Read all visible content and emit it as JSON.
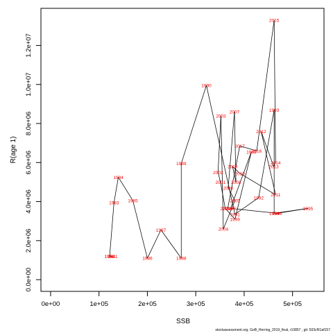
{
  "chart_data": {
    "type": "line",
    "xlabel": "SSB",
    "ylabel": "R(age 1)",
    "xlim": [
      -20000,
      565000
    ],
    "ylim": [
      -600000,
      13900000
    ],
    "x_ticks": [
      0,
      100000,
      200000,
      300000,
      400000,
      500000
    ],
    "x_tick_labels": [
      "0e+00",
      "1e+05",
      "2e+05",
      "3e+05",
      "4e+05",
      "5e+05"
    ],
    "y_ticks": [
      0,
      2000000,
      4000000,
      6000000,
      8000000,
      10000000,
      12000000
    ],
    "y_tick_labels": [
      "0.0e+00",
      "2.0e+06",
      "4.0e+06",
      "6.0e+06",
      "8.0e+06",
      "1.0e+07",
      "1.2e+07"
    ],
    "grid": false,
    "line_color": "#000000",
    "label_color": "#ff0000",
    "points": [
      {
        "year": "1980",
        "x": 122000,
        "y": 1200000
      },
      {
        "year": "1981",
        "x": 128000,
        "y": 1200000
      },
      {
        "year": "1982",
        "x": 122000,
        "y": 1200000
      },
      {
        "year": "1983",
        "x": 131000,
        "y": 3950000
      },
      {
        "year": "1984",
        "x": 140000,
        "y": 5250000
      },
      {
        "year": "1985",
        "x": 170000,
        "y": 4050000
      },
      {
        "year": "1986",
        "x": 200000,
        "y": 1100000
      },
      {
        "year": "1987",
        "x": 228000,
        "y": 2550000
      },
      {
        "year": "1988",
        "x": 270000,
        "y": 1100000
      },
      {
        "year": "1989",
        "x": 270000,
        "y": 5950000
      },
      {
        "year": "1990",
        "x": 322000,
        "y": 9950000
      },
      {
        "year": "1991",
        "x": 381000,
        "y": 3350000
      },
      {
        "year": "1992",
        "x": 430000,
        "y": 4200000
      },
      {
        "year": "1993",
        "x": 462000,
        "y": 8700000
      },
      {
        "year": "1994",
        "x": 462000,
        "y": 3400000
      },
      {
        "year": "1995",
        "x": 532000,
        "y": 3650000
      },
      {
        "year": "1996",
        "x": 468000,
        "y": 3400000
      },
      {
        "year": "1997",
        "x": 372000,
        "y": 3650000
      },
      {
        "year": "1998",
        "x": 415000,
        "y": 6550000
      },
      {
        "year": "1999",
        "x": 381000,
        "y": 3100000
      },
      {
        "year": "2000",
        "x": 361000,
        "y": 3650000
      },
      {
        "year": "2001",
        "x": 351000,
        "y": 5000000
      },
      {
        "year": "2002",
        "x": 346000,
        "y": 5500000
      },
      {
        "year": "2003",
        "x": 352000,
        "y": 8400000
      },
      {
        "year": "2004",
        "x": 357000,
        "y": 2600000
      },
      {
        "year": "2005",
        "x": 381000,
        "y": 4050000
      },
      {
        "year": "2006",
        "x": 367000,
        "y": 4700000
      },
      {
        "year": "2007",
        "x": 380000,
        "y": 8600000
      },
      {
        "year": "2008",
        "x": 383000,
        "y": 5000000
      },
      {
        "year": "2009",
        "x": 376000,
        "y": 5800000
      },
      {
        "year": "2010",
        "x": 391000,
        "y": 5450000
      },
      {
        "year": "2011",
        "x": 465000,
        "y": 4350000
      },
      {
        "year": "2012",
        "x": 435000,
        "y": 7600000
      },
      {
        "year": "2013",
        "x": 461000,
        "y": 5800000
      },
      {
        "year": "2014",
        "x": 465000,
        "y": 6000000
      },
      {
        "year": "2015",
        "x": 462000,
        "y": 13300000
      },
      {
        "year": "2016",
        "x": 426000,
        "y": 6600000
      },
      {
        "year": "2017",
        "x": 391000,
        "y": 6850000
      },
      {
        "year": "2018",
        "x": 366000,
        "y": 3650000
      }
    ]
  },
  "footer": "stockassessment.org,  GoB_Herring_2019_final, r10857 ,  git: 503cf91af157"
}
